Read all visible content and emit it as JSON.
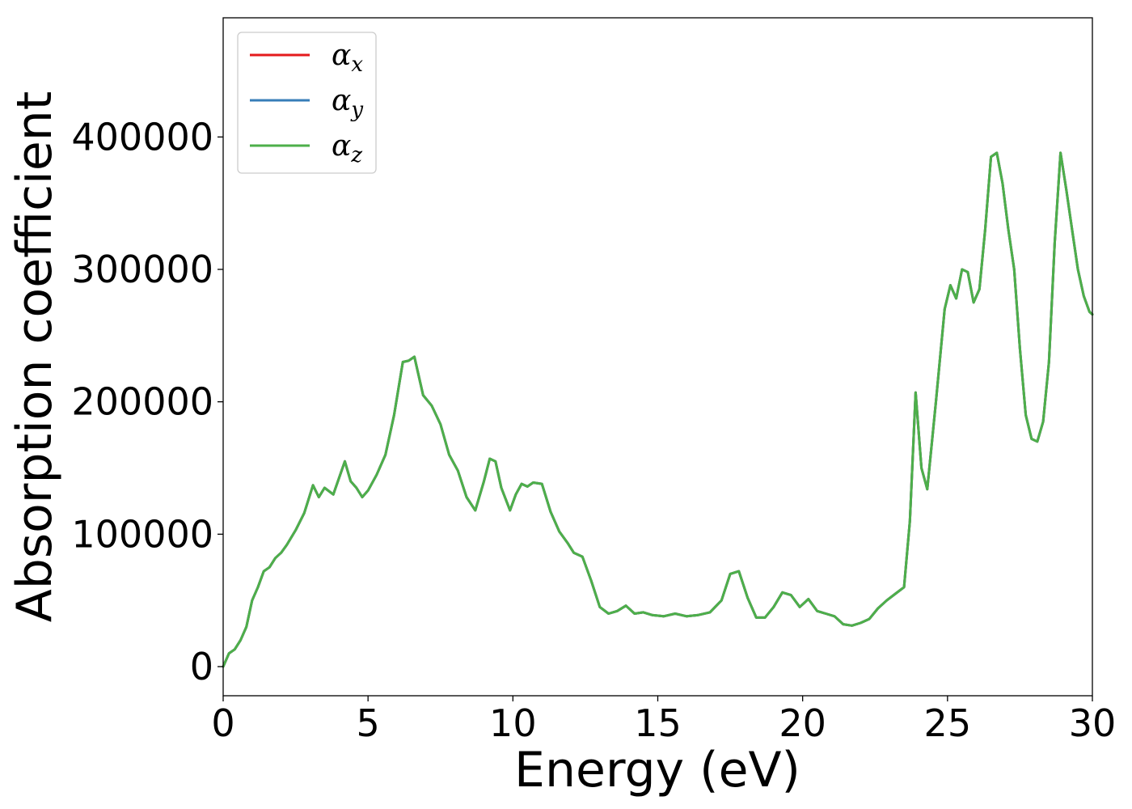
{
  "chart_data": {
    "type": "line",
    "xlabel": "Energy (eV)",
    "ylabel": "Absorption coefficient",
    "xlim": [
      0,
      30
    ],
    "ylim": [
      -22000,
      490000
    ],
    "xticks": [
      0,
      5,
      10,
      15,
      20,
      25,
      30
    ],
    "yticks": [
      0,
      100000,
      200000,
      300000,
      400000
    ],
    "xtick_labels": [
      "0",
      "5",
      "10",
      "15",
      "20",
      "25",
      "30"
    ],
    "ytick_labels": [
      "0",
      "100000",
      "200000",
      "300000",
      "400000"
    ],
    "grid": false,
    "legend_position": "top-left",
    "series": [
      {
        "name": "α_x",
        "symbol": "α",
        "subscript": "x",
        "color": "#e41a1c"
      },
      {
        "name": "α_y",
        "symbol": "α",
        "subscript": "y",
        "color": "#377eb8"
      },
      {
        "name": "α_z",
        "symbol": "α",
        "subscript": "z",
        "color": "#4daf4a"
      }
    ],
    "x": [
      0,
      0.2,
      0.4,
      0.6,
      0.8,
      1.0,
      1.2,
      1.4,
      1.6,
      1.8,
      2.0,
      2.2,
      2.5,
      2.8,
      3.1,
      3.3,
      3.5,
      3.8,
      4.2,
      4.4,
      4.6,
      4.8,
      5.0,
      5.3,
      5.6,
      5.9,
      6.2,
      6.4,
      6.6,
      6.9,
      7.2,
      7.5,
      7.8,
      8.1,
      8.4,
      8.7,
      9.0,
      9.2,
      9.4,
      9.6,
      9.9,
      10.1,
      10.3,
      10.5,
      10.7,
      11.0,
      11.3,
      11.6,
      11.9,
      12.1,
      12.4,
      12.7,
      13.0,
      13.3,
      13.6,
      13.9,
      14.2,
      14.5,
      14.8,
      15.2,
      15.6,
      16.0,
      16.4,
      16.8,
      17.2,
      17.5,
      17.8,
      18.1,
      18.4,
      18.7,
      19.0,
      19.3,
      19.6,
      19.9,
      20.2,
      20.5,
      20.8,
      21.1,
      21.4,
      21.7,
      22.0,
      22.3,
      22.6,
      22.9,
      23.2,
      23.5,
      23.7,
      23.9,
      24.1,
      24.3,
      24.6,
      24.9,
      25.1,
      25.3,
      25.5,
      25.7,
      25.9,
      26.1,
      26.3,
      26.5,
      26.7,
      26.9,
      27.1,
      27.3,
      27.5,
      27.7,
      27.9,
      28.1,
      28.3,
      28.5,
      28.7,
      28.9,
      29.1,
      29.3,
      29.5,
      29.7,
      29.9,
      30.0
    ],
    "values": [
      0,
      10000,
      13000,
      20000,
      30000,
      50000,
      60000,
      72000,
      75000,
      82000,
      86000,
      92000,
      103000,
      116000,
      137000,
      128000,
      135000,
      130000,
      155000,
      140000,
      135000,
      128000,
      133000,
      145000,
      160000,
      190000,
      230000,
      231000,
      234000,
      205000,
      197000,
      183000,
      160000,
      148000,
      128000,
      118000,
      140000,
      157000,
      155000,
      135000,
      118000,
      130000,
      138000,
      136000,
      139000,
      138000,
      117000,
      102000,
      93000,
      86000,
      83000,
      65000,
      45000,
      40000,
      42000,
      46000,
      40000,
      41000,
      39000,
      38000,
      40000,
      38000,
      39000,
      41000,
      50000,
      70000,
      72000,
      52000,
      37000,
      37000,
      45000,
      56000,
      54000,
      45000,
      51000,
      42000,
      40000,
      38000,
      32000,
      31000,
      33000,
      36000,
      44000,
      50000,
      55000,
      60000,
      110000,
      207000,
      150000,
      134000,
      200000,
      270000,
      288000,
      278000,
      300000,
      298000,
      275000,
      285000,
      330000,
      385000,
      388000,
      365000,
      330000,
      300000,
      240000,
      190000,
      172000,
      170000,
      185000,
      230000,
      320000,
      388000,
      360000,
      330000,
      300000,
      280000,
      268000,
      266000
    ]
  }
}
